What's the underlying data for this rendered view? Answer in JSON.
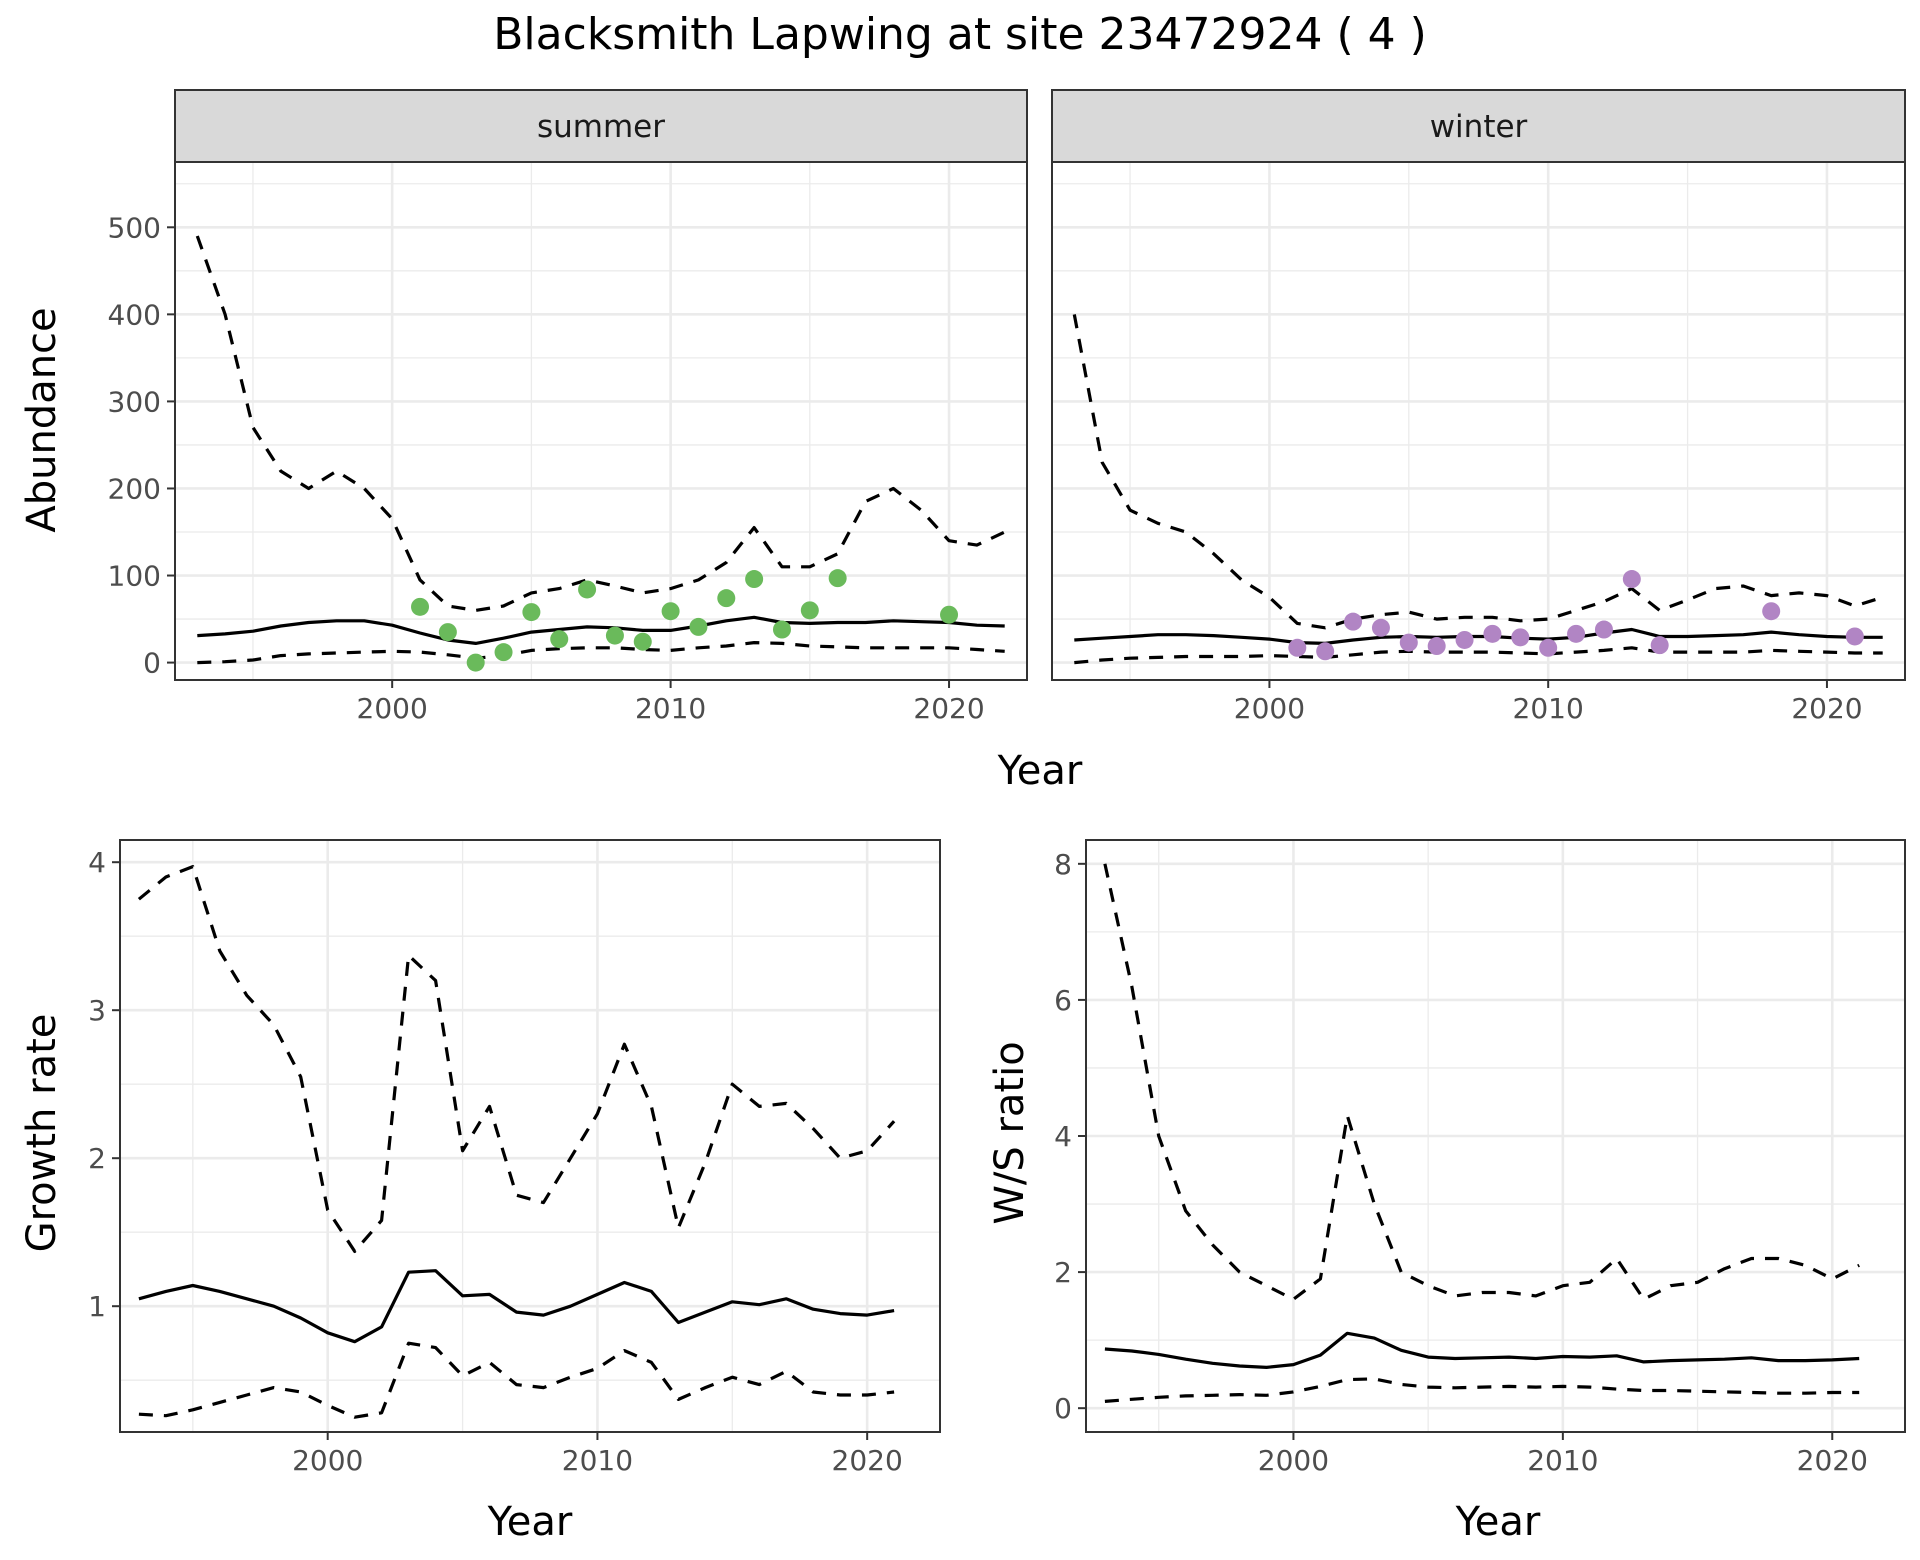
{
  "figure": {
    "title": "Blacksmith Lapwing at site 23472924 ( 4 )"
  },
  "colors": {
    "summer_points": "#6aba5b",
    "winter_points": "#b185c4",
    "lines": "#000000"
  },
  "chart_data": [
    {
      "id": "abundance",
      "type": "line",
      "xlabel": "Year",
      "ylabel": "Abundance",
      "xlim": [
        1992.2,
        2022.8
      ],
      "ylim": [
        -20,
        575
      ],
      "x_ticks": [
        2000,
        2010,
        2020
      ],
      "y_ticks": [
        0,
        100,
        200,
        300,
        400,
        500
      ],
      "grid": true,
      "facets": [
        {
          "strip": "summer",
          "years": [
            1993,
            1994,
            1995,
            1996,
            1997,
            1998,
            1999,
            2000,
            2001,
            2002,
            2003,
            2004,
            2005,
            2006,
            2007,
            2008,
            2009,
            2010,
            2011,
            2012,
            2013,
            2014,
            2015,
            2016,
            2017,
            2018,
            2019,
            2020,
            2021,
            2022
          ],
          "mean": [
            31,
            33,
            36,
            42,
            46,
            48,
            48,
            43,
            34,
            26,
            22,
            28,
            35,
            38,
            41,
            40,
            37,
            37,
            42,
            48,
            52,
            46,
            45,
            46,
            46,
            48,
            47,
            46,
            43,
            42
          ],
          "upper": [
            490,
            400,
            270,
            220,
            200,
            220,
            200,
            165,
            95,
            65,
            60,
            65,
            80,
            85,
            95,
            88,
            80,
            85,
            95,
            115,
            155,
            110,
            110,
            125,
            185,
            200,
            175,
            140,
            135,
            150
          ],
          "lower": [
            0,
            1,
            3,
            8,
            10,
            11,
            12,
            13,
            12,
            9,
            5,
            8,
            14,
            16,
            17,
            17,
            15,
            14,
            17,
            19,
            23,
            22,
            19,
            18,
            17,
            17,
            17,
            17,
            15,
            13
          ],
          "points": {
            "x": [
              2001,
              2002,
              2003,
              2004,
              2005,
              2006,
              2007,
              2008,
              2009,
              2010,
              2011,
              2012,
              2013,
              2014,
              2015,
              2016,
              2020
            ],
            "y": [
              64,
              35,
              0,
              12,
              58,
              27,
              84,
              31,
              24,
              59,
              41,
              74,
              96,
              38,
              60,
              97,
              55
            ]
          }
        },
        {
          "strip": "winter",
          "years": [
            1993,
            1994,
            1995,
            1996,
            1997,
            1998,
            1999,
            2000,
            2001,
            2002,
            2003,
            2004,
            2005,
            2006,
            2007,
            2008,
            2009,
            2010,
            2011,
            2012,
            2013,
            2014,
            2015,
            2016,
            2017,
            2018,
            2019,
            2020,
            2021,
            2022
          ],
          "mean": [
            26,
            28,
            30,
            32,
            32,
            31,
            29,
            27,
            23,
            22,
            26,
            29,
            30,
            29,
            30,
            30,
            28,
            27,
            29,
            34,
            38,
            30,
            30,
            31,
            32,
            35,
            32,
            30,
            29,
            29
          ],
          "upper": [
            400,
            230,
            175,
            160,
            150,
            125,
            95,
            75,
            45,
            40,
            50,
            55,
            58,
            50,
            52,
            52,
            48,
            50,
            60,
            70,
            85,
            60,
            72,
            85,
            88,
            77,
            80,
            77,
            65,
            75
          ],
          "lower": [
            0,
            3,
            5,
            6,
            7,
            7,
            7,
            8,
            7,
            6,
            9,
            12,
            13,
            12,
            12,
            12,
            11,
            10,
            12,
            14,
            17,
            12,
            12,
            12,
            12,
            14,
            13,
            12,
            11,
            11
          ],
          "points": {
            "x": [
              2001,
              2002,
              2003,
              2004,
              2005,
              2006,
              2007,
              2008,
              2009,
              2010,
              2011,
              2012,
              2013,
              2014,
              2018,
              2021
            ],
            "y": [
              17,
              13,
              47,
              40,
              23,
              19,
              26,
              33,
              29,
              17,
              33,
              38,
              96,
              20,
              59,
              30
            ]
          }
        }
      ]
    },
    {
      "id": "growth",
      "type": "line",
      "xlabel": "Year",
      "ylabel": "Growth rate",
      "xlim": [
        1992.3,
        2022.7
      ],
      "ylim": [
        0.15,
        4.15
      ],
      "x_ticks": [
        2000,
        2010,
        2020
      ],
      "y_ticks": [
        1,
        2,
        3,
        4
      ],
      "grid": true,
      "years": [
        1993,
        1994,
        1995,
        1996,
        1997,
        1998,
        1999,
        2000,
        2001,
        2002,
        2003,
        2004,
        2005,
        2006,
        2007,
        2008,
        2009,
        2010,
        2011,
        2012,
        2013,
        2014,
        2015,
        2016,
        2017,
        2018,
        2019,
        2020,
        2021
      ],
      "mean": [
        1.05,
        1.1,
        1.14,
        1.1,
        1.05,
        1.0,
        0.92,
        0.82,
        0.76,
        0.86,
        1.23,
        1.24,
        1.07,
        1.08,
        0.96,
        0.94,
        1.0,
        1.08,
        1.16,
        1.1,
        0.89,
        0.96,
        1.03,
        1.01,
        1.05,
        0.98,
        0.95,
        0.94,
        0.97
      ],
      "upper": [
        3.75,
        3.9,
        3.97,
        3.4,
        3.1,
        2.9,
        2.55,
        1.65,
        1.37,
        1.58,
        3.37,
        3.2,
        2.05,
        2.35,
        1.75,
        1.7,
        2.0,
        2.3,
        2.77,
        2.35,
        1.53,
        1.97,
        2.5,
        2.35,
        2.37,
        2.2,
        2.0,
        2.05,
        2.25
      ],
      "lower": [
        0.27,
        0.26,
        0.3,
        0.35,
        0.4,
        0.45,
        0.42,
        0.33,
        0.25,
        0.28,
        0.75,
        0.72,
        0.53,
        0.62,
        0.47,
        0.45,
        0.52,
        0.58,
        0.7,
        0.62,
        0.37,
        0.45,
        0.52,
        0.47,
        0.56,
        0.42,
        0.4,
        0.4,
        0.42
      ]
    },
    {
      "id": "ws_ratio",
      "type": "line",
      "xlabel": "Year",
      "ylabel": "W/S ratio",
      "xlim": [
        1992.3,
        2022.7
      ],
      "ylim": [
        -0.35,
        8.35
      ],
      "x_ticks": [
        2000,
        2010,
        2020
      ],
      "y_ticks": [
        0,
        2,
        4,
        6,
        8
      ],
      "grid": true,
      "years": [
        1993,
        1994,
        1995,
        1996,
        1997,
        1998,
        1999,
        2000,
        2001,
        2002,
        2003,
        2004,
        2005,
        2006,
        2007,
        2008,
        2009,
        2010,
        2011,
        2012,
        2013,
        2014,
        2015,
        2016,
        2017,
        2018,
        2019,
        2020,
        2021
      ],
      "mean": [
        0.87,
        0.84,
        0.79,
        0.72,
        0.66,
        0.62,
        0.6,
        0.64,
        0.78,
        1.1,
        1.03,
        0.85,
        0.75,
        0.73,
        0.74,
        0.75,
        0.73,
        0.76,
        0.75,
        0.77,
        0.68,
        0.7,
        0.71,
        0.72,
        0.74,
        0.7,
        0.7,
        0.71,
        0.73
      ],
      "upper": [
        8.0,
        6.2,
        4.0,
        2.9,
        2.4,
        2.0,
        1.8,
        1.6,
        1.9,
        4.3,
        3.0,
        2.0,
        1.8,
        1.65,
        1.7,
        1.7,
        1.65,
        1.8,
        1.85,
        2.2,
        1.6,
        1.8,
        1.85,
        2.05,
        2.2,
        2.2,
        2.1,
        1.9,
        2.1
      ],
      "lower": [
        0.1,
        0.13,
        0.16,
        0.18,
        0.19,
        0.2,
        0.19,
        0.24,
        0.32,
        0.42,
        0.43,
        0.35,
        0.31,
        0.3,
        0.31,
        0.32,
        0.31,
        0.32,
        0.31,
        0.28,
        0.26,
        0.26,
        0.25,
        0.24,
        0.23,
        0.22,
        0.22,
        0.23,
        0.23
      ]
    }
  ]
}
